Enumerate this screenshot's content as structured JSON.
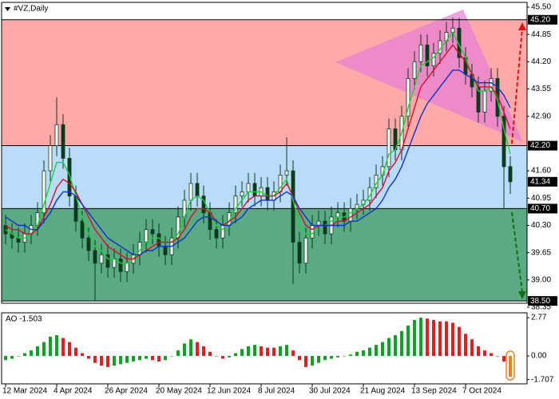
{
  "chart_data": [
    {
      "type": "candlestick",
      "title": "#VZ,Daily",
      "categories": [
        "12 Mar 2024",
        null,
        null,
        null,
        null,
        null,
        null,
        null,
        "4 Apr 2024",
        null,
        null,
        null,
        null,
        null,
        null,
        null,
        "26 Apr 2024",
        null,
        null,
        null,
        null,
        null,
        null,
        null,
        "20 May 2024",
        null,
        null,
        null,
        null,
        null,
        null,
        null,
        "12 Jun 2024",
        null,
        null,
        null,
        null,
        null,
        null,
        null,
        "8 Jul 2024",
        null,
        null,
        null,
        null,
        null,
        null,
        null,
        "30 Jul 2024",
        null,
        null,
        null,
        null,
        null,
        null,
        null,
        "21 Aug 2024",
        null,
        null,
        null,
        null,
        null,
        null,
        null,
        "13 Sep 2024",
        null,
        null,
        null,
        null,
        null,
        null,
        null,
        "7 Oct 2024",
        null,
        null,
        null,
        null,
        null,
        null,
        null
      ],
      "open": [
        40.3,
        40.1,
        40.0,
        39.9,
        40.1,
        40.3,
        40.6,
        41.6,
        42.2,
        42.7,
        41.9,
        41.0,
        40.4,
        40.0,
        39.7,
        39.4,
        39.6,
        39.3,
        39.5,
        39.2,
        39.4,
        39.6,
        39.9,
        40.2,
        40.1,
        39.8,
        39.6,
        40.0,
        40.5,
        40.9,
        41.3,
        41.0,
        40.6,
        40.2,
        40.0,
        40.3,
        40.6,
        41.0,
        41.1,
        41.3,
        41.0,
        41.2,
        40.9,
        41.1,
        41.5,
        41.6,
        39.9,
        39.4,
        40.0,
        40.3,
        40.4,
        40.1,
        40.5,
        40.6,
        40.4,
        40.7,
        40.8,
        40.9,
        41.2,
        41.5,
        41.7,
        42.6,
        42.1,
        42.9,
        43.8,
        44.2,
        44.6,
        44.1,
        44.4,
        44.7,
        44.9,
        45.0,
        44.3,
        43.9,
        43.6,
        43.0,
        43.5,
        43.8,
        42.9,
        41.7
      ],
      "high": [
        40.55,
        40.35,
        40.25,
        40.35,
        40.55,
        40.85,
        41.85,
        42.45,
        43.35,
        42.95,
        42.15,
        41.25,
        40.65,
        40.25,
        39.95,
        39.85,
        39.85,
        39.75,
        39.75,
        39.65,
        39.85,
        40.15,
        40.45,
        40.45,
        40.35,
        40.05,
        40.25,
        40.75,
        41.15,
        41.55,
        41.55,
        41.25,
        40.85,
        40.45,
        40.55,
        40.85,
        41.25,
        41.35,
        41.55,
        41.55,
        41.45,
        41.45,
        41.35,
        41.75,
        42.4,
        41.85,
        40.15,
        40.25,
        40.55,
        40.65,
        40.65,
        40.75,
        40.85,
        40.85,
        40.95,
        41.05,
        41.15,
        41.45,
        41.75,
        41.95,
        42.85,
        42.85,
        43.15,
        44.05,
        44.45,
        44.85,
        44.85,
        44.65,
        44.95,
        45.15,
        45.25,
        45.25,
        44.55,
        44.15,
        43.85,
        43.75,
        44.05,
        44.05,
        43.15,
        41.95
      ],
      "low": [
        39.85,
        39.75,
        39.65,
        39.65,
        39.85,
        40.05,
        40.35,
        41.35,
        41.95,
        41.65,
        40.75,
        40.15,
        39.75,
        39.45,
        38.5,
        39.15,
        39.05,
        39.05,
        38.95,
        38.95,
        39.15,
        39.35,
        39.65,
        39.85,
        39.55,
        39.35,
        39.35,
        39.75,
        40.25,
        40.65,
        40.75,
        40.35,
        39.95,
        39.75,
        39.75,
        40.05,
        40.35,
        40.75,
        40.85,
        40.75,
        40.75,
        40.65,
        40.65,
        40.85,
        41.25,
        38.9,
        39.15,
        39.15,
        39.75,
        40.05,
        39.85,
        39.85,
        40.25,
        40.15,
        40.15,
        40.45,
        40.55,
        40.65,
        40.95,
        41.25,
        41.45,
        41.85,
        41.85,
        42.65,
        43.55,
        43.95,
        43.85,
        43.85,
        44.15,
        44.45,
        44.65,
        44.05,
        43.65,
        43.35,
        42.75,
        42.75,
        43.25,
        42.65,
        40.7,
        41.05
      ],
      "close": [
        40.1,
        40.0,
        39.9,
        40.1,
        40.3,
        40.6,
        41.6,
        42.2,
        42.7,
        41.9,
        41.0,
        40.4,
        40.0,
        39.7,
        39.4,
        39.6,
        39.3,
        39.5,
        39.2,
        39.4,
        39.6,
        39.9,
        40.2,
        40.1,
        39.8,
        39.6,
        40.0,
        40.5,
        40.9,
        41.3,
        41.0,
        40.6,
        40.2,
        40.0,
        40.3,
        40.6,
        41.0,
        41.1,
        41.3,
        41.0,
        41.2,
        40.9,
        41.1,
        41.5,
        41.6,
        39.9,
        39.4,
        40.0,
        40.3,
        40.4,
        40.1,
        40.5,
        40.6,
        40.4,
        40.7,
        40.8,
        40.9,
        41.2,
        41.5,
        41.7,
        42.6,
        42.1,
        42.9,
        43.8,
        44.2,
        44.6,
        44.1,
        44.4,
        44.7,
        44.9,
        45.0,
        44.3,
        43.9,
        43.6,
        43.0,
        43.5,
        43.8,
        42.9,
        41.7,
        41.34
      ],
      "candle_color": "#0b3a1c",
      "lines": [
        {
          "color": "#1fcf3a",
          "values": [
            40.2,
            40.1,
            40.0,
            40.0,
            40.1,
            40.3,
            40.8,
            41.3,
            41.8,
            41.8,
            41.5,
            41.0,
            40.5,
            40.1,
            39.8,
            39.7,
            39.5,
            39.5,
            39.4,
            39.4,
            39.5,
            39.7,
            39.9,
            40.0,
            40.0,
            39.9,
            39.9,
            40.1,
            40.5,
            40.9,
            41.0,
            40.9,
            40.6,
            40.3,
            40.2,
            40.4,
            40.7,
            40.9,
            41.1,
            41.1,
            41.1,
            41.0,
            41.0,
            41.2,
            41.4,
            40.9,
            40.3,
            40.1,
            40.1,
            40.3,
            40.3,
            40.4,
            40.5,
            40.5,
            40.6,
            40.7,
            40.8,
            41.0,
            41.3,
            41.5,
            42.0,
            42.1,
            42.5,
            43.1,
            43.6,
            44.1,
            44.2,
            44.3,
            44.5,
            44.7,
            44.9,
            44.6,
            44.3,
            43.9,
            43.5,
            43.5,
            43.6,
            43.3,
            42.6,
            42.0
          ]
        },
        {
          "color": "#d8102e",
          "values": [
            40.3,
            40.2,
            40.2,
            40.1,
            40.1,
            40.2,
            40.5,
            40.8,
            41.2,
            41.4,
            41.3,
            41.1,
            40.8,
            40.5,
            40.2,
            40.0,
            39.8,
            39.7,
            39.6,
            39.5,
            39.5,
            39.6,
            39.7,
            39.8,
            39.9,
            39.9,
            39.9,
            40.0,
            40.2,
            40.5,
            40.7,
            40.7,
            40.6,
            40.4,
            40.3,
            40.4,
            40.5,
            40.7,
            40.9,
            41.0,
            41.0,
            41.0,
            41.0,
            41.1,
            41.3,
            41.0,
            40.6,
            40.3,
            40.2,
            40.3,
            40.3,
            40.3,
            40.4,
            40.4,
            40.5,
            40.6,
            40.7,
            40.8,
            41.0,
            41.2,
            41.6,
            41.8,
            42.1,
            42.6,
            43.1,
            43.6,
            43.8,
            44.0,
            44.2,
            44.4,
            44.6,
            44.4,
            44.2,
            43.9,
            43.6,
            43.6,
            43.6,
            43.4,
            43.0,
            42.6
          ]
        },
        {
          "color": "#1530c8",
          "values": [
            40.5,
            40.4,
            40.3,
            40.3,
            40.2,
            40.2,
            40.4,
            40.6,
            40.9,
            41.1,
            41.1,
            41.0,
            40.8,
            40.6,
            40.4,
            40.2,
            40.0,
            39.9,
            39.8,
            39.7,
            39.6,
            39.6,
            39.7,
            39.7,
            39.8,
            39.8,
            39.8,
            39.9,
            40.0,
            40.2,
            40.4,
            40.5,
            40.5,
            40.4,
            40.3,
            40.3,
            40.4,
            40.5,
            40.7,
            40.8,
            40.9,
            40.9,
            40.9,
            41.0,
            41.1,
            41.0,
            40.7,
            40.5,
            40.3,
            40.3,
            40.3,
            40.3,
            40.3,
            40.3,
            40.4,
            40.4,
            40.5,
            40.6,
            40.7,
            40.9,
            41.2,
            41.4,
            41.7,
            42.1,
            42.5,
            42.9,
            43.2,
            43.4,
            43.6,
            43.8,
            44.0,
            44.0,
            43.9,
            43.8,
            43.7,
            43.7,
            43.7,
            43.6,
            43.4,
            43.1
          ]
        }
      ],
      "ylim": [
        38.35,
        45.5
      ],
      "yticks": [
        {
          "value": 45.5,
          "label": "45.50"
        },
        {
          "value": 44.85,
          "label": "44.85"
        },
        {
          "value": 44.2,
          "label": "44.20"
        },
        {
          "value": 43.55,
          "label": "43.55"
        },
        {
          "value": 42.9,
          "label": "42.90"
        },
        {
          "value": 41.6,
          "label": "41.60"
        },
        {
          "value": 40.95,
          "label": "40.95"
        },
        {
          "value": 40.3,
          "label": "40.30"
        },
        {
          "value": 39.65,
          "label": "39.65"
        },
        {
          "value": 39,
          "label": "39.00"
        },
        {
          "value": 38.35,
          "label": "38.35"
        }
      ],
      "levels": [
        {
          "value": 45.2,
          "label": "45.20"
        },
        {
          "value": 42.2,
          "label": "42.20"
        },
        {
          "value": 40.7,
          "label": "40.70"
        },
        {
          "value": 38.5,
          "label": "38.50"
        }
      ],
      "zone_colors": [
        "#ffaaaa",
        "#b9dcfa",
        "#5aab83"
      ],
      "last_price": {
        "value": 41.34,
        "label": "41.34"
      }
    },
    {
      "type": "bar",
      "title": "AO -1.503",
      "values": [
        -0.3,
        -0.2,
        0.0,
        0.2,
        0.4,
        0.7,
        1.0,
        1.4,
        1.5,
        1.3,
        1.0,
        0.6,
        0.2,
        -0.2,
        -0.5,
        -0.7,
        -0.8,
        -0.7,
        -0.6,
        -0.5,
        -0.4,
        -0.3,
        -0.2,
        -0.3,
        -0.4,
        -0.3,
        0.0,
        0.4,
        0.9,
        1.2,
        1.0,
        0.7,
        0.3,
        0.0,
        -0.2,
        -0.1,
        0.2,
        0.5,
        0.7,
        0.8,
        0.7,
        0.6,
        0.6,
        0.7,
        0.8,
        0.4,
        -0.3,
        -0.8,
        -0.7,
        -0.5,
        -0.3,
        -0.2,
        -0.1,
        0.0,
        0.1,
        0.3,
        0.4,
        0.6,
        0.8,
        1.0,
        1.3,
        1.5,
        1.8,
        2.2,
        2.6,
        2.77,
        2.7,
        2.6,
        2.5,
        2.5,
        2.4,
        2.1,
        1.6,
        1.2,
        0.7,
        0.4,
        0.2,
        0.0,
        -0.4,
        -1.503
      ],
      "up_color": "#12a01e",
      "down_color": "#e0201a",
      "highlight_color": "#f08020",
      "ylim": [
        -1.96,
        3.12
      ],
      "yticks": [
        2.77,
        {
          "value": 0,
          "label": "0.00"
        },
        {
          "value": -1.707,
          "label": "-1.707"
        }
      ]
    }
  ]
}
